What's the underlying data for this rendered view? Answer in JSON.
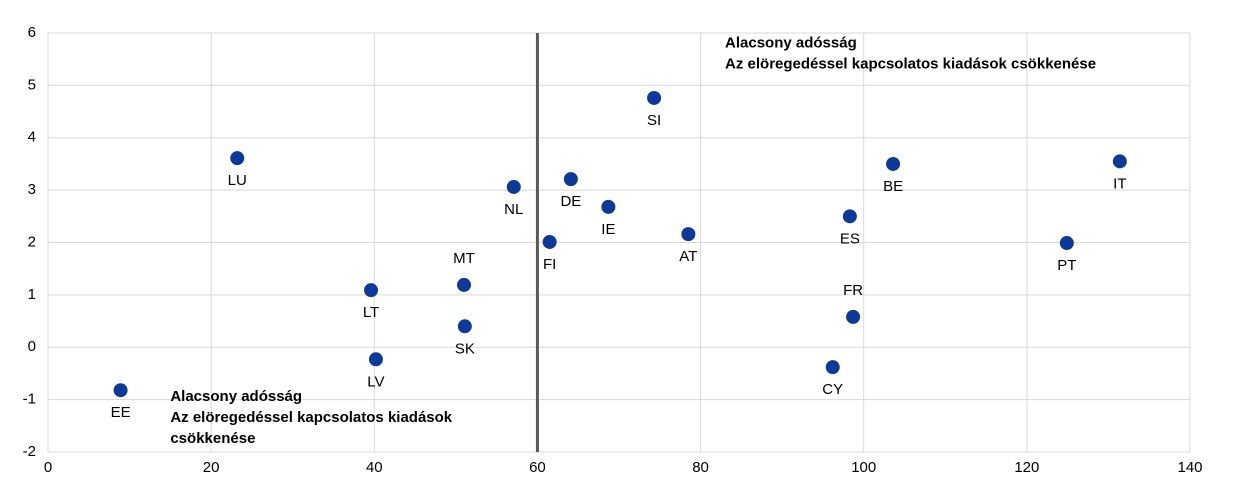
{
  "chart_data": {
    "type": "scatter",
    "points": [
      {
        "label": "EE",
        "x": 8.9,
        "y": -0.82
      },
      {
        "label": "LU",
        "x": 23.2,
        "y": 3.61
      },
      {
        "label": "LT",
        "x": 39.6,
        "y": 1.09
      },
      {
        "label": "LV",
        "x": 40.2,
        "y": -0.23
      },
      {
        "label": "MT",
        "x": 51.0,
        "y": 1.19
      },
      {
        "label": "SK",
        "x": 51.1,
        "y": 0.4
      },
      {
        "label": "NL",
        "x": 57.1,
        "y": 3.06
      },
      {
        "label": "FI",
        "x": 61.5,
        "y": 2.01
      },
      {
        "label": "DE",
        "x": 64.1,
        "y": 3.21
      },
      {
        "label": "IE",
        "x": 68.7,
        "y": 2.68
      },
      {
        "label": "SI",
        "x": 74.3,
        "y": 4.76
      },
      {
        "label": "AT",
        "x": 78.5,
        "y": 2.16
      },
      {
        "label": "ES",
        "x": 98.3,
        "y": 2.5
      },
      {
        "label": "CY",
        "x": 96.2,
        "y": -0.38
      },
      {
        "label": "FR",
        "x": 98.7,
        "y": 0.58
      },
      {
        "label": "BE",
        "x": 103.6,
        "y": 3.5
      },
      {
        "label": "PT",
        "x": 124.9,
        "y": 1.99
      },
      {
        "label": "IT",
        "x": 131.4,
        "y": 3.55
      }
    ],
    "color": "#0d3a99",
    "xlim": [
      0,
      140
    ],
    "xticks": [
      0,
      20,
      40,
      60,
      80,
      100,
      120,
      140
    ],
    "ylim": [
      -2,
      6
    ],
    "yticks": [
      -2,
      -1,
      0,
      1,
      2,
      3,
      4,
      5,
      6
    ],
    "grid": true,
    "vline": 60,
    "annotations": [
      {
        "lines": [
          "Alacsony adósság",
          "Az elöregedéssel kapcsolatos kiadások csökkenése"
        ],
        "x": 83,
        "y": 5.8
      },
      {
        "lines": [
          "Alacsony adósság",
          "Az elöregedéssel kapcsolatos kiadások",
          "csökkenése"
        ],
        "x": 15,
        "y": -0.95
      }
    ]
  }
}
